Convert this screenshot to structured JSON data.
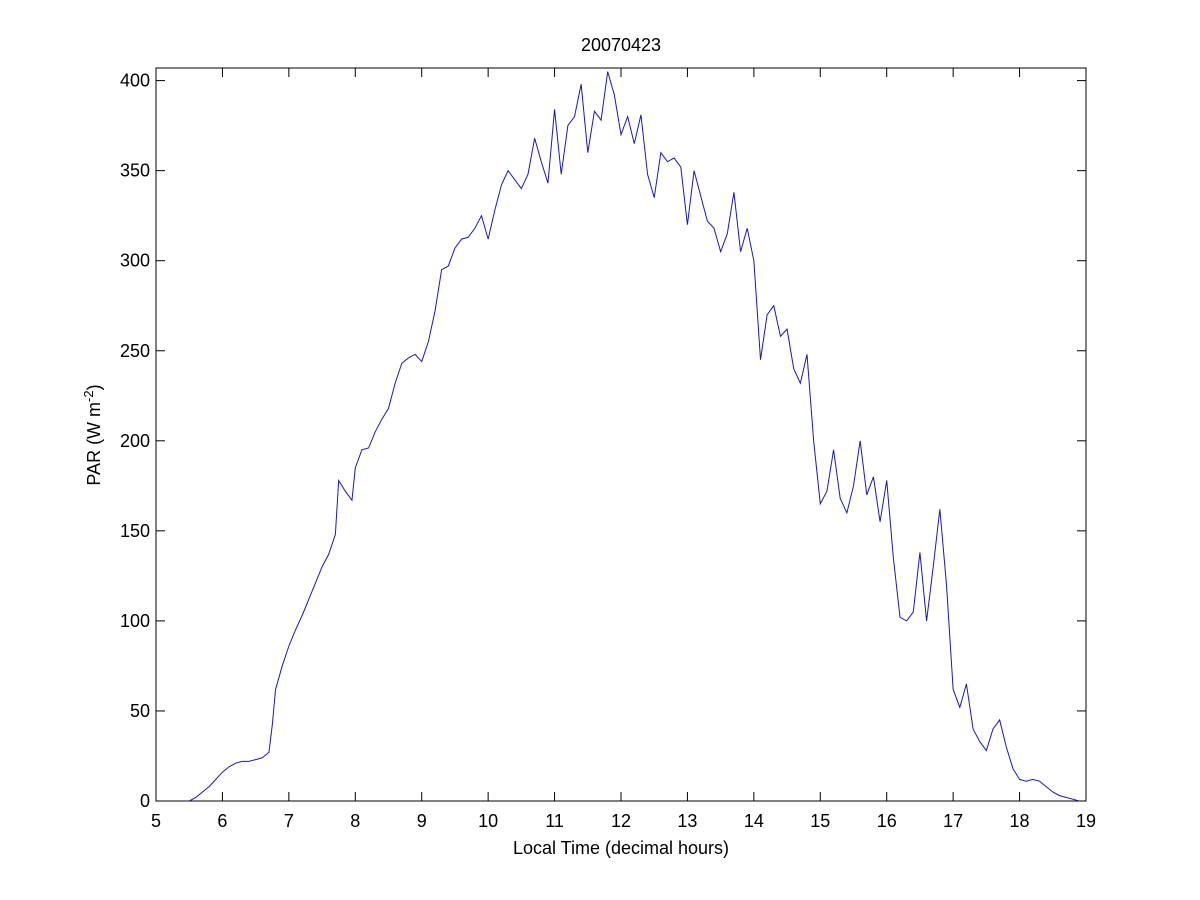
{
  "chart_data": {
    "type": "line",
    "title": "20070423",
    "xlabel": "Local Time (decimal hours)",
    "ylabel": {
      "text": "PAR (W m",
      "superscript": "-2",
      "suffix": ")"
    },
    "xlim": [
      5,
      19
    ],
    "xticks": [
      5,
      6,
      7,
      8,
      9,
      10,
      11,
      12,
      13,
      14,
      15,
      16,
      17,
      18,
      19
    ],
    "ylim": [
      0,
      407
    ],
    "yticks": [
      0,
      50,
      100,
      150,
      200,
      250,
      300,
      350,
      400
    ],
    "series": [
      {
        "color": "#1a1aa8",
        "x": [
          5.5,
          5.6,
          5.7,
          5.8,
          5.9,
          6.0,
          6.1,
          6.2,
          6.3,
          6.4,
          6.5,
          6.6,
          6.7,
          6.75,
          6.8,
          6.9,
          7.0,
          7.1,
          7.2,
          7.3,
          7.4,
          7.5,
          7.6,
          7.7,
          7.75,
          7.85,
          7.95,
          8.0,
          8.1,
          8.2,
          8.3,
          8.4,
          8.5,
          8.6,
          8.7,
          8.8,
          8.9,
          9.0,
          9.1,
          9.2,
          9.3,
          9.4,
          9.5,
          9.6,
          9.7,
          9.8,
          9.9,
          10.0,
          10.1,
          10.2,
          10.3,
          10.4,
          10.5,
          10.6,
          10.7,
          10.8,
          10.9,
          11.0,
          11.1,
          11.2,
          11.3,
          11.4,
          11.5,
          11.6,
          11.7,
          11.8,
          11.9,
          12.0,
          12.1,
          12.2,
          12.3,
          12.4,
          12.5,
          12.6,
          12.7,
          12.8,
          12.9,
          13.0,
          13.1,
          13.2,
          13.3,
          13.4,
          13.5,
          13.6,
          13.7,
          13.8,
          13.9,
          14.0,
          14.1,
          14.2,
          14.3,
          14.4,
          14.5,
          14.6,
          14.7,
          14.8,
          14.9,
          15.0,
          15.1,
          15.2,
          15.3,
          15.4,
          15.5,
          15.6,
          15.7,
          15.8,
          15.9,
          16.0,
          16.1,
          16.2,
          16.3,
          16.4,
          16.5,
          16.6,
          16.7,
          16.8,
          16.9,
          17.0,
          17.1,
          17.2,
          17.3,
          17.4,
          17.5,
          17.6,
          17.7,
          17.8,
          17.9,
          18.0,
          18.1,
          18.2,
          18.3,
          18.4,
          18.5,
          18.6,
          18.7,
          18.8,
          18.9
        ],
        "values": [
          0,
          2,
          5,
          8,
          12,
          16,
          19,
          21,
          22,
          22,
          23,
          24,
          27,
          42,
          62,
          75,
          86,
          95,
          103,
          112,
          121,
          130,
          137,
          148,
          178,
          172,
          167,
          185,
          195,
          196,
          205,
          212,
          218,
          232,
          243,
          246,
          248,
          244,
          255,
          272,
          295,
          297,
          307,
          312,
          313,
          318,
          325,
          312,
          328,
          342,
          350,
          345,
          340,
          348,
          368,
          355,
          343,
          384,
          348,
          375,
          380,
          398,
          360,
          383,
          378,
          405,
          392,
          370,
          380,
          365,
          381,
          348,
          335,
          360,
          355,
          357,
          352,
          320,
          350,
          336,
          322,
          318,
          305,
          315,
          338,
          305,
          318,
          300,
          245,
          270,
          275,
          258,
          262,
          240,
          232,
          248,
          200,
          165,
          172,
          195,
          168,
          160,
          175,
          200,
          170,
          180,
          155,
          178,
          135,
          102,
          100,
          105,
          138,
          100,
          130,
          162,
          120,
          62,
          52,
          65,
          40,
          33,
          28,
          40,
          45,
          30,
          18,
          12,
          11,
          12,
          11,
          8,
          5,
          3,
          2,
          1,
          0
        ]
      }
    ]
  }
}
